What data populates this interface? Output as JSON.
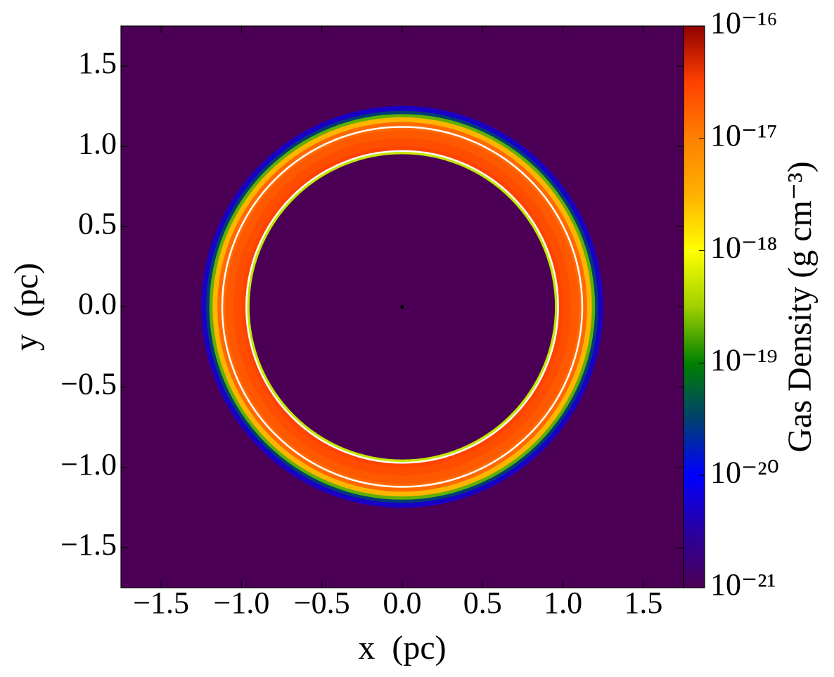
{
  "chart_data": {
    "type": "heatmap",
    "xlabel": "x  (pc)",
    "ylabel": "y  (pc)",
    "xlim": [
      -1.75,
      1.75
    ],
    "ylim": [
      -1.75,
      1.75
    ],
    "xticks": [
      {
        "value": -1.5,
        "label": "−1.5"
      },
      {
        "value": -1.0,
        "label": "−1.0"
      },
      {
        "value": -0.5,
        "label": "−0.5"
      },
      {
        "value": 0,
        "label": "0.0"
      },
      0.5,
      {
        "value": 1.0,
        "label": "1.0"
      },
      1.5
    ],
    "yticks": [
      {
        "value": -1.5,
        "label": "−1.5"
      },
      {
        "value": -1.0,
        "label": "−1.0"
      },
      {
        "value": -0.5,
        "label": "−0.5"
      },
      {
        "value": 0,
        "label": "0.0"
      },
      0.5,
      {
        "value": 1.0,
        "label": "1.0"
      },
      1.5
    ],
    "background_value": 1e-21,
    "radial_profile": {
      "r": [
        0.95,
        0.97,
        1.0,
        1.05,
        1.1,
        1.15,
        1.18,
        1.2,
        1.22,
        1.25
      ],
      "values": [
        1e-21,
        5e-19,
        3e-17,
        2.5e-17,
        2e-17,
        1.5e-17,
        3e-18,
        2e-19,
        3e-20,
        5e-21
      ]
    },
    "contours": {
      "color": "#ffffff",
      "r": [
        0.97,
        1.12
      ]
    },
    "points": {
      "x": [
        0
      ],
      "y": [
        0
      ],
      "color": "#000000"
    },
    "colorbar": {
      "label": "Gas Density (g cm⁻³)",
      "scale": "log",
      "lim": [
        1e-21,
        1e-16
      ],
      "ticks": [
        {
          "value": 1e-21,
          "label": "10⁻²¹"
        },
        {
          "value": 1e-20,
          "label": "10⁻²⁰"
        },
        {
          "value": 1e-19,
          "label": "10⁻¹⁹"
        },
        {
          "value": 1e-18,
          "label": "10⁻¹⁸"
        },
        {
          "value": 1e-17,
          "label": "10⁻¹⁷"
        },
        {
          "value": 1e-16,
          "label": "10⁻¹⁶"
        }
      ],
      "colors": [
        "#4b0055",
        "#2a00a0",
        "#0000ff",
        "#004070",
        "#008000",
        "#a0d000",
        "#ffff00",
        "#ffb000",
        "#ff8000",
        "#ff4000",
        "#900000"
      ]
    }
  }
}
